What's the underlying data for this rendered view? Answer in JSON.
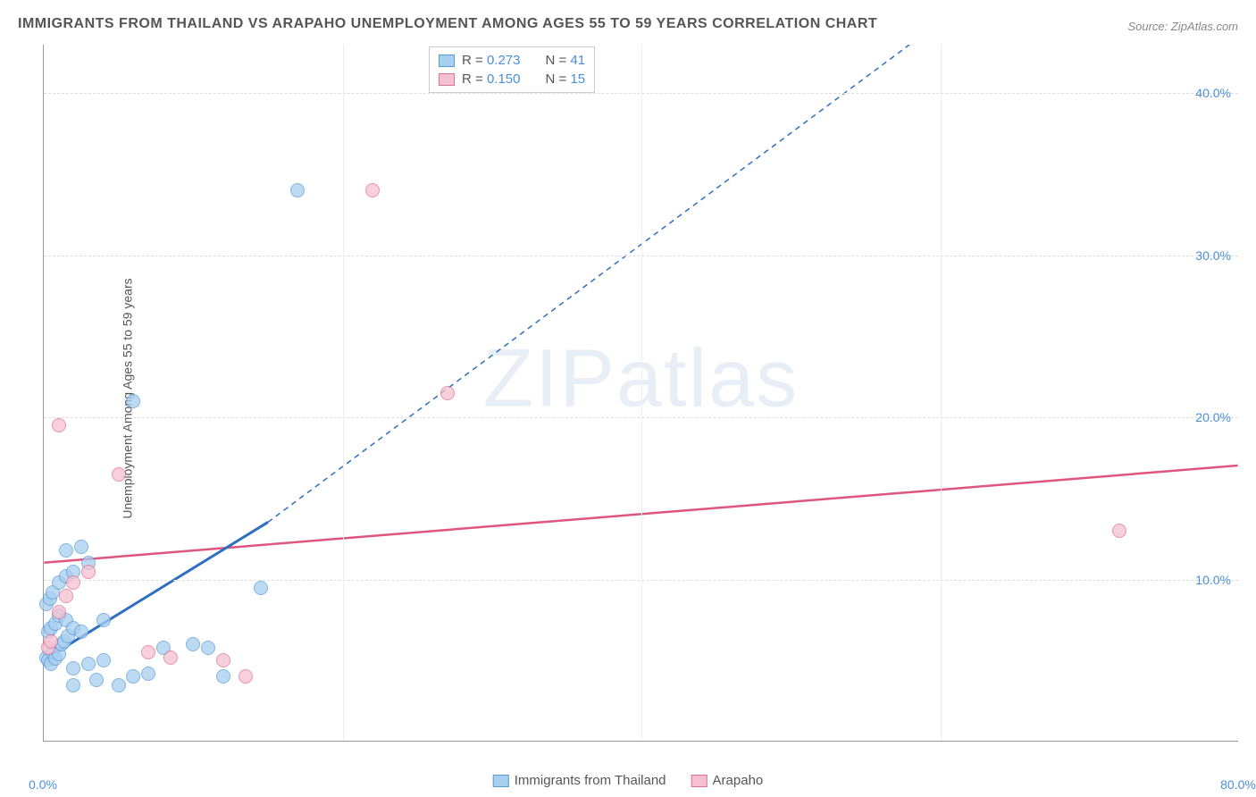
{
  "title": "IMMIGRANTS FROM THAILAND VS ARAPAHO UNEMPLOYMENT AMONG AGES 55 TO 59 YEARS CORRELATION CHART",
  "source": "Source: ZipAtlas.com",
  "y_axis_label": "Unemployment Among Ages 55 to 59 years",
  "watermark": "ZIPatlas",
  "chart": {
    "type": "scatter",
    "xlim": [
      0,
      80
    ],
    "ylim": [
      0,
      43
    ],
    "x_ticks": [
      {
        "v": 0,
        "label": "0.0%"
      },
      {
        "v": 80,
        "label": "80.0%"
      }
    ],
    "y_ticks": [
      {
        "v": 10,
        "label": "10.0%"
      },
      {
        "v": 20,
        "label": "20.0%"
      },
      {
        "v": 30,
        "label": "30.0%"
      },
      {
        "v": 40,
        "label": "40.0%"
      }
    ],
    "grid_color": "#dddddd",
    "background_color": "#ffffff",
    "axis_color": "#999999",
    "tick_color": "#4a8fd8",
    "point_radius": 8,
    "series": [
      {
        "name": "Immigrants from Thailand",
        "fill": "#a8cef0",
        "stroke": "#5b9bd5",
        "line_color": "#2e6fc0",
        "R": 0.273,
        "N": 41,
        "regression": {
          "x1": 0,
          "y1": 5,
          "x2": 15,
          "y2": 13.5,
          "dash_from_x": 15,
          "dash_to_x": 58,
          "dash_to_y": 43
        },
        "points": [
          [
            0.2,
            5.2
          ],
          [
            0.3,
            5.0
          ],
          [
            0.5,
            4.8
          ],
          [
            0.6,
            5.5
          ],
          [
            0.8,
            5.1
          ],
          [
            1.0,
            5.4
          ],
          [
            1.2,
            6.0
          ],
          [
            1.4,
            6.2
          ],
          [
            1.6,
            6.5
          ],
          [
            0.3,
            6.8
          ],
          [
            0.5,
            7.0
          ],
          [
            0.8,
            7.3
          ],
          [
            1.0,
            7.8
          ],
          [
            1.5,
            7.5
          ],
          [
            2.0,
            7.0
          ],
          [
            2.5,
            6.8
          ],
          [
            0.2,
            8.5
          ],
          [
            0.4,
            8.8
          ],
          [
            0.6,
            9.2
          ],
          [
            1.0,
            9.8
          ],
          [
            1.5,
            10.2
          ],
          [
            2.0,
            10.5
          ],
          [
            3.0,
            11.0
          ],
          [
            4.0,
            7.5
          ],
          [
            5.0,
            3.5
          ],
          [
            6.0,
            4.0
          ],
          [
            7.0,
            4.2
          ],
          [
            8.0,
            5.8
          ],
          [
            10.0,
            6.0
          ],
          [
            11.0,
            5.8
          ],
          [
            12.0,
            4.0
          ],
          [
            2.0,
            4.5
          ],
          [
            3.0,
            4.8
          ],
          [
            4.0,
            5.0
          ],
          [
            1.5,
            11.8
          ],
          [
            2.5,
            12.0
          ],
          [
            14.5,
            9.5
          ],
          [
            6.0,
            21.0
          ],
          [
            17.0,
            34.0
          ],
          [
            3.5,
            3.8
          ],
          [
            2.0,
            3.5
          ]
        ]
      },
      {
        "name": "Arapaho",
        "fill": "#f5c1d0",
        "stroke": "#e07097",
        "line_color": "#e05580",
        "R": 0.15,
        "N": 15,
        "regression": {
          "x1": 0,
          "y1": 11,
          "x2": 80,
          "y2": 17
        },
        "points": [
          [
            0.3,
            5.8
          ],
          [
            0.5,
            6.2
          ],
          [
            1.0,
            8.0
          ],
          [
            1.5,
            9.0
          ],
          [
            2.0,
            9.8
          ],
          [
            3.0,
            10.5
          ],
          [
            7.0,
            5.5
          ],
          [
            8.5,
            5.2
          ],
          [
            12.0,
            5.0
          ],
          [
            13.5,
            4.0
          ],
          [
            1.0,
            19.5
          ],
          [
            5.0,
            16.5
          ],
          [
            22.0,
            34.0
          ],
          [
            27.0,
            21.5
          ],
          [
            72.0,
            13.0
          ]
        ]
      }
    ]
  },
  "legend_top": [
    {
      "swatch_fill": "#a8cef0",
      "swatch_stroke": "#5b9bd5",
      "R": "0.273",
      "N": "41"
    },
    {
      "swatch_fill": "#f5c1d0",
      "swatch_stroke": "#e07097",
      "R": "0.150",
      "N": "15"
    }
  ],
  "legend_bottom": [
    {
      "swatch_fill": "#a8cef0",
      "swatch_stroke": "#5b9bd5",
      "label": "Immigrants from Thailand"
    },
    {
      "swatch_fill": "#f5c1d0",
      "swatch_stroke": "#e07097",
      "label": "Arapaho"
    }
  ]
}
